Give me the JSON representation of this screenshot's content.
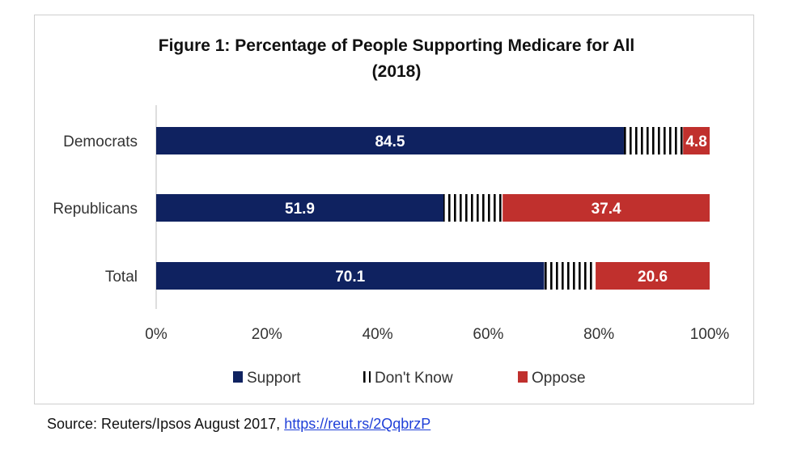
{
  "chart_data": {
    "type": "bar",
    "orientation": "horizontal",
    "stacked": true,
    "title": "Figure 1: Percentage of People Supporting Medicare for All",
    "subtitle": "(2018)",
    "categories": [
      "Democrats",
      "Republicans",
      "Total"
    ],
    "series": [
      {
        "name": "Support",
        "values": [
          84.5,
          51.9,
          70.1
        ],
        "color": "#0f2260",
        "pattern": "solid"
      },
      {
        "name": "Don't Know",
        "values": [
          10.7,
          10.7,
          9.3
        ],
        "color": "#000000",
        "pattern": "vertical-stripes"
      },
      {
        "name": "Oppose",
        "values": [
          4.8,
          37.4,
          20.6
        ],
        "color": "#c0302d",
        "pattern": "solid"
      }
    ],
    "data_labels": {
      "Support": [
        "84.5",
        "51.9",
        "70.1"
      ],
      "Oppose": [
        "4.8",
        "37.4",
        "20.6"
      ]
    },
    "x_ticks": [
      "0%",
      "20%",
      "40%",
      "60%",
      "80%",
      "100%"
    ],
    "xlim": [
      0,
      100
    ],
    "grid": false,
    "legend_position": "bottom"
  },
  "source": {
    "prefix": "Source: Reuters/Ipsos August 2017, ",
    "link_text": "https://reut.rs/2QqbrzP"
  }
}
